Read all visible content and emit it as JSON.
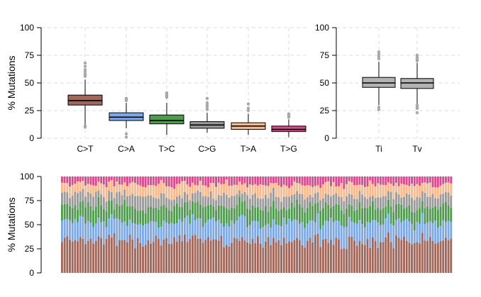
{
  "colors": {
    "C>T": "#a0675a",
    "C>A": "#7ca8e6",
    "T>C": "#4f9a4f",
    "C>G": "#9a9a9a",
    "T>A": "#f9b98d",
    "T>G": "#d84a8e",
    "Ti": "#b3b3b3",
    "Tv": "#b3b3b3",
    "outlier": "#a8a8a8"
  },
  "chart_data": [
    {
      "type": "boxplot",
      "ylabel": "% Mutations",
      "ylim": [
        0,
        100
      ],
      "yticks": [
        0,
        25,
        50,
        75,
        100
      ],
      "grid": true,
      "categories": [
        "C>T",
        "C>A",
        "T>C",
        "C>G",
        "T>A",
        "T>G"
      ],
      "boxes": [
        {
          "label": "C>T",
          "whisker_low": 12,
          "q1": 30,
          "median": 34,
          "q3": 39,
          "whisker_high": 53,
          "outliers": [
            68,
            65,
            62,
            60,
            58,
            57,
            56,
            11,
            10
          ]
        },
        {
          "label": "C>A",
          "whisker_low": 9,
          "q1": 16,
          "median": 19,
          "q3": 23,
          "whisker_high": 32,
          "outliers": [
            36,
            35,
            34,
            4,
            1
          ]
        },
        {
          "label": "T>C",
          "whisker_low": 3,
          "q1": 13,
          "median": 16,
          "q3": 21,
          "whisker_high": 32,
          "outliers": [
            41,
            40,
            39,
            38,
            37
          ]
        },
        {
          "label": "C>G",
          "whisker_low": 5,
          "q1": 9,
          "median": 12,
          "q3": 15,
          "whisker_high": 23,
          "outliers": [
            36,
            32,
            30,
            28,
            26
          ]
        },
        {
          "label": "T>A",
          "whisker_low": 3,
          "q1": 8,
          "median": 11,
          "q3": 14,
          "whisker_high": 22,
          "outliers": [
            31,
            27,
            25
          ]
        },
        {
          "label": "T>G",
          "whisker_low": 1,
          "q1": 6,
          "median": 8,
          "q3": 11,
          "whisker_high": 17,
          "outliers": [
            22,
            21,
            20,
            19
          ]
        }
      ]
    },
    {
      "type": "boxplot",
      "ylim": [
        0,
        100
      ],
      "yticks": [
        0,
        25,
        50,
        75,
        100
      ],
      "grid": true,
      "categories": [
        "Ti",
        "Tv"
      ],
      "boxes": [
        {
          "label": "Ti",
          "whisker_low": 30,
          "q1": 46,
          "median": 50,
          "q3": 55,
          "whisker_high": 69,
          "outliers": [
            78,
            76,
            74,
            72,
            28,
            26
          ]
        },
        {
          "label": "Tv",
          "whisker_low": 31,
          "q1": 45,
          "median": 50,
          "q3": 54,
          "whisker_high": 68,
          "outliers": [
            75,
            73,
            71,
            70,
            30,
            28,
            27,
            23
          ]
        }
      ]
    },
    {
      "type": "stacked-bar",
      "ylabel": "% Mutations",
      "ylim": [
        0,
        100
      ],
      "yticks": [
        0,
        25,
        50,
        75,
        100
      ],
      "series_order": [
        "C>T",
        "C>A",
        "T>C",
        "C>G",
        "T>A",
        "T>G"
      ],
      "samples": 150
    }
  ]
}
